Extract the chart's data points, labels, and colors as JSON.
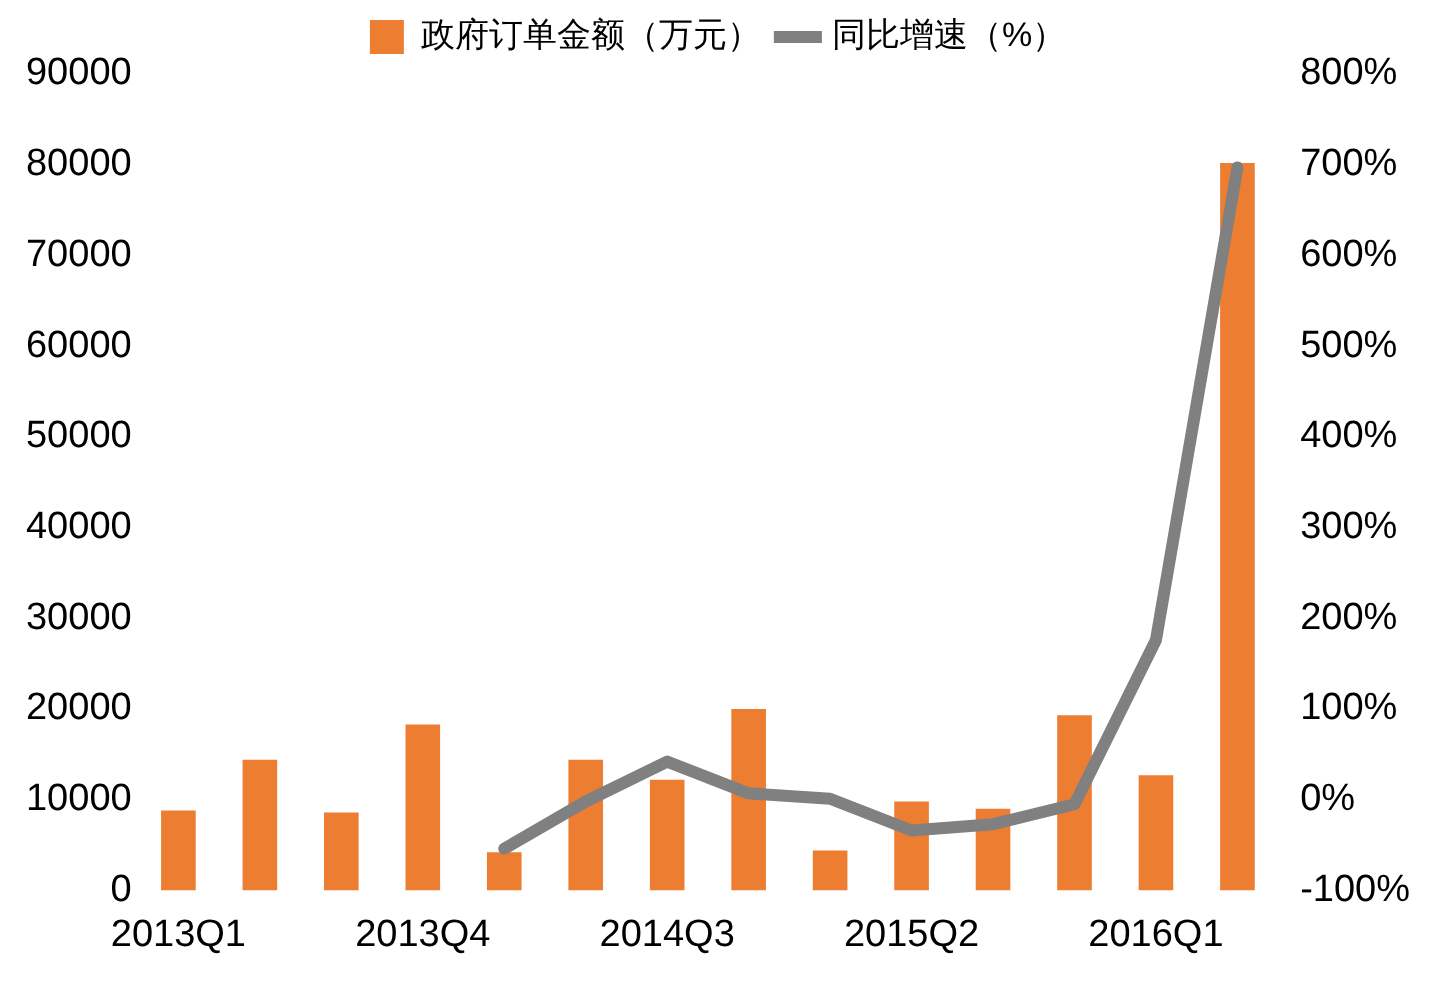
{
  "chart_data": {
    "type": "bar",
    "categories": [
      "2013Q1",
      null,
      null,
      "2013Q4",
      null,
      null,
      "2014Q3",
      null,
      null,
      "2015Q2",
      null,
      null,
      "2016Q1",
      null
    ],
    "series": [
      {
        "name": "政府订单金额（万元）",
        "color": "#ed7d31",
        "values": [
          8800,
          14400,
          8600,
          18300,
          4200,
          14400,
          12200,
          20000,
          4400,
          9800,
          9000,
          19300,
          12700,
          80200
        ]
      },
      {
        "name": "同比增速（%）",
        "type": "line",
        "axis": "y2",
        "color": "#808080",
        "values": [
          null,
          null,
          null,
          null,
          -54,
          -2,
          42,
          7,
          1,
          -34,
          -27,
          -5,
          176,
          697
        ]
      }
    ],
    "ylim": [
      0,
      90000
    ],
    "yticks": [
      0,
      10000,
      20000,
      30000,
      40000,
      50000,
      60000,
      70000,
      80000,
      90000
    ],
    "y2lim": [
      -100,
      800
    ],
    "y2ticks": [
      {
        "value": -100,
        "label": "-100%"
      },
      {
        "value": 0,
        "label": "0%"
      },
      {
        "value": 100,
        "label": "100%"
      },
      {
        "value": 200,
        "label": "200%"
      },
      {
        "value": 300,
        "label": "300%"
      },
      {
        "value": 400,
        "label": "400%"
      },
      {
        "value": 500,
        "label": "500%"
      },
      {
        "value": 600,
        "label": "600%"
      },
      {
        "value": 700,
        "label": "700%"
      },
      {
        "value": 800,
        "label": "800%"
      }
    ],
    "grid": false,
    "legend": "top",
    "marker": "none"
  }
}
